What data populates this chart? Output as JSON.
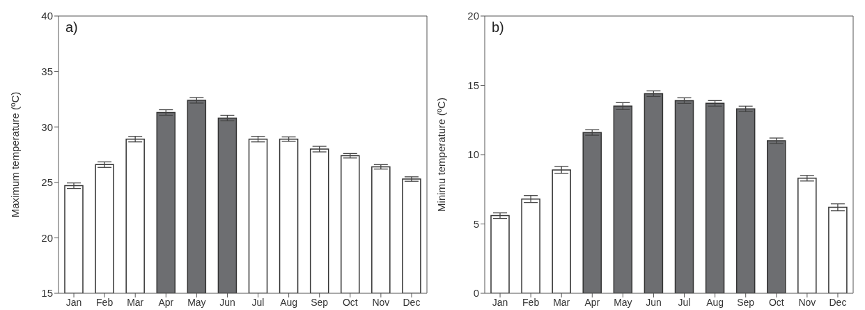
{
  "chart_data": [
    {
      "type": "bar",
      "title": "a)",
      "ylabel": "Maximum temperature (ºC)",
      "categories": [
        "Jan",
        "Feb",
        "Mar",
        "Apr",
        "May",
        "Jun",
        "Jul",
        "Aug",
        "Sep",
        "Oct",
        "Nov",
        "Dec"
      ],
      "values": [
        24.7,
        26.6,
        28.9,
        31.3,
        32.4,
        30.8,
        28.9,
        28.9,
        28.0,
        27.4,
        26.4,
        25.3
      ],
      "errors": [
        0.25,
        0.25,
        0.25,
        0.25,
        0.25,
        0.25,
        0.25,
        0.2,
        0.25,
        0.2,
        0.2,
        0.2
      ],
      "colors": [
        "#ffffff",
        "#ffffff",
        "#ffffff",
        "#6d6e71",
        "#6d6e71",
        "#6d6e71",
        "#ffffff",
        "#ffffff",
        "#ffffff",
        "#ffffff",
        "#ffffff",
        "#ffffff"
      ],
      "ylim": [
        15,
        40
      ],
      "yticks": [
        15,
        20,
        25,
        30,
        35,
        40
      ],
      "grid": false,
      "legend": false
    },
    {
      "type": "bar",
      "title": "b)",
      "ylabel": "Minimu temperature (ºC)",
      "categories": [
        "Jan",
        "Feb",
        "Mar",
        "Apr",
        "May",
        "Jun",
        "Jul",
        "Aug",
        "Sep",
        "Oct",
        "Nov",
        "Dec"
      ],
      "values": [
        5.6,
        6.8,
        8.9,
        11.6,
        13.5,
        14.4,
        13.9,
        13.7,
        13.3,
        11.0,
        8.3,
        6.2
      ],
      "errors": [
        0.2,
        0.25,
        0.25,
        0.2,
        0.25,
        0.2,
        0.2,
        0.2,
        0.2,
        0.2,
        0.2,
        0.25
      ],
      "colors": [
        "#ffffff",
        "#ffffff",
        "#ffffff",
        "#6d6e71",
        "#6d6e71",
        "#6d6e71",
        "#6d6e71",
        "#6d6e71",
        "#6d6e71",
        "#6d6e71",
        "#ffffff",
        "#ffffff"
      ],
      "ylim": [
        0,
        20
      ],
      "yticks": [
        0,
        5,
        10,
        15,
        20
      ],
      "grid": false,
      "legend": false
    }
  ]
}
